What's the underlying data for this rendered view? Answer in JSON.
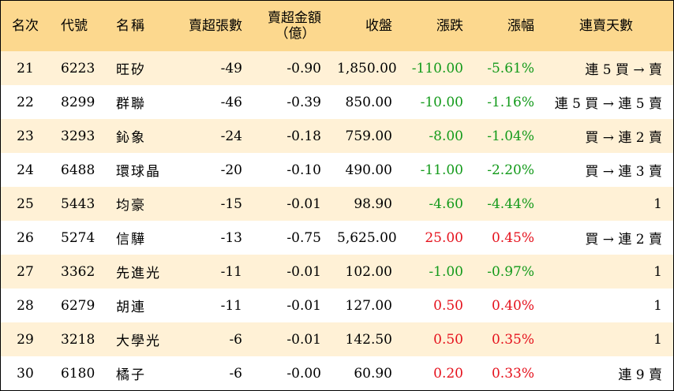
{
  "headers": {
    "rank": "名次",
    "code": "代號",
    "name": "名稱",
    "sell_lots": "賣超張數",
    "sell_amount_line1": "賣超金額",
    "sell_amount_line2": "（億）",
    "close": "收盤",
    "change": "漲跌",
    "change_pct": "漲幅",
    "streak": "連賣天數"
  },
  "rows": [
    {
      "rank": "21",
      "code": "6223",
      "name": "旺矽",
      "sell_lots": "-49",
      "sell_amount": "-0.90",
      "close": "1,850.00",
      "change": "-110.00",
      "change_pct": "-5.61%",
      "streak": "連 5 買 → 賣",
      "dir": "down"
    },
    {
      "rank": "22",
      "code": "8299",
      "name": "群聯",
      "sell_lots": "-46",
      "sell_amount": "-0.39",
      "close": "850.00",
      "change": "-10.00",
      "change_pct": "-1.16%",
      "streak": "連 5 買 → 連 5 賣",
      "dir": "down"
    },
    {
      "rank": "23",
      "code": "3293",
      "name": "鈊象",
      "sell_lots": "-24",
      "sell_amount": "-0.18",
      "close": "759.00",
      "change": "-8.00",
      "change_pct": "-1.04%",
      "streak": "買 → 連 2 賣",
      "dir": "down"
    },
    {
      "rank": "24",
      "code": "6488",
      "name": "環球晶",
      "sell_lots": "-20",
      "sell_amount": "-0.10",
      "close": "490.00",
      "change": "-11.00",
      "change_pct": "-2.20%",
      "streak": "買 → 連 3 賣",
      "dir": "down"
    },
    {
      "rank": "25",
      "code": "5443",
      "name": "均豪",
      "sell_lots": "-15",
      "sell_amount": "-0.01",
      "close": "98.90",
      "change": "-4.60",
      "change_pct": "-4.44%",
      "streak": "1",
      "dir": "down"
    },
    {
      "rank": "26",
      "code": "5274",
      "name": "信驊",
      "sell_lots": "-13",
      "sell_amount": "-0.75",
      "close": "5,625.00",
      "change": "25.00",
      "change_pct": "0.45%",
      "streak": "買 → 連 2 賣",
      "dir": "up"
    },
    {
      "rank": "27",
      "code": "3362",
      "name": "先進光",
      "sell_lots": "-11",
      "sell_amount": "-0.01",
      "close": "102.00",
      "change": "-1.00",
      "change_pct": "-0.97%",
      "streak": "1",
      "dir": "down"
    },
    {
      "rank": "28",
      "code": "6279",
      "name": "胡連",
      "sell_lots": "-11",
      "sell_amount": "-0.01",
      "close": "127.00",
      "change": "0.50",
      "change_pct": "0.40%",
      "streak": "1",
      "dir": "up"
    },
    {
      "rank": "29",
      "code": "3218",
      "name": "大學光",
      "sell_lots": "-6",
      "sell_amount": "-0.01",
      "close": "142.50",
      "change": "0.50",
      "change_pct": "0.35%",
      "streak": "1",
      "dir": "up"
    },
    {
      "rank": "30",
      "code": "6180",
      "name": "橘子",
      "sell_lots": "-6",
      "sell_amount": "-0.00",
      "close": "60.90",
      "change": "0.20",
      "change_pct": "0.33%",
      "streak": "連 9 賣",
      "dir": "up"
    }
  ],
  "colors": {
    "header_bg": "#fcd88e",
    "stripe_bg": "#fff1d6",
    "up": "#e5121d",
    "down": "#139a1a"
  }
}
